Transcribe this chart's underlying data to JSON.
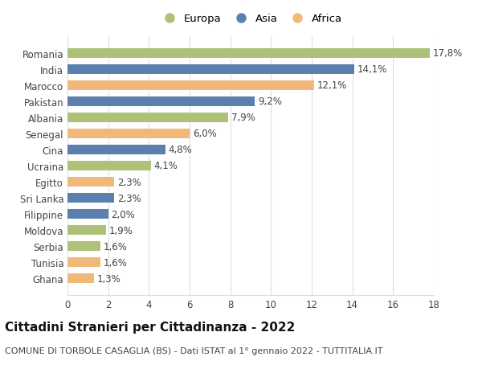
{
  "countries": [
    "Romania",
    "India",
    "Marocco",
    "Pakistan",
    "Albania",
    "Senegal",
    "Cina",
    "Ucraina",
    "Egitto",
    "Sri Lanka",
    "Filippine",
    "Moldova",
    "Serbia",
    "Tunisia",
    "Ghana"
  ],
  "values": [
    17.8,
    14.1,
    12.1,
    9.2,
    7.9,
    6.0,
    4.8,
    4.1,
    2.3,
    2.3,
    2.0,
    1.9,
    1.6,
    1.6,
    1.3
  ],
  "labels": [
    "17,8%",
    "14,1%",
    "12,1%",
    "9,2%",
    "7,9%",
    "6,0%",
    "4,8%",
    "4,1%",
    "2,3%",
    "2,3%",
    "2,0%",
    "1,9%",
    "1,6%",
    "1,6%",
    "1,3%"
  ],
  "colors": [
    "#adc178",
    "#5b80b0",
    "#f0b97a",
    "#5b80b0",
    "#adc178",
    "#f0b97a",
    "#5b80b0",
    "#adc178",
    "#f0b97a",
    "#5b80b0",
    "#5b80b0",
    "#adc178",
    "#adc178",
    "#f0b97a",
    "#f0b97a"
  ],
  "continents": [
    "Europa",
    "Asia",
    "Africa"
  ],
  "legend_colors": [
    "#adc178",
    "#5b80b0",
    "#f0b97a"
  ],
  "title": "Cittadini Stranieri per Cittadinanza - 2022",
  "subtitle": "COMUNE DI TORBOLE CASAGLIA (BS) - Dati ISTAT al 1° gennaio 2022 - TUTTITALIA.IT",
  "xlim": [
    0,
    18
  ],
  "xticks": [
    0,
    2,
    4,
    6,
    8,
    10,
    12,
    14,
    16,
    18
  ],
  "background_color": "#ffffff",
  "grid_color": "#dddddd",
  "bar_height": 0.6,
  "title_fontsize": 11,
  "subtitle_fontsize": 8,
  "tick_fontsize": 8.5,
  "label_fontsize": 8.5,
  "legend_fontsize": 9.5
}
